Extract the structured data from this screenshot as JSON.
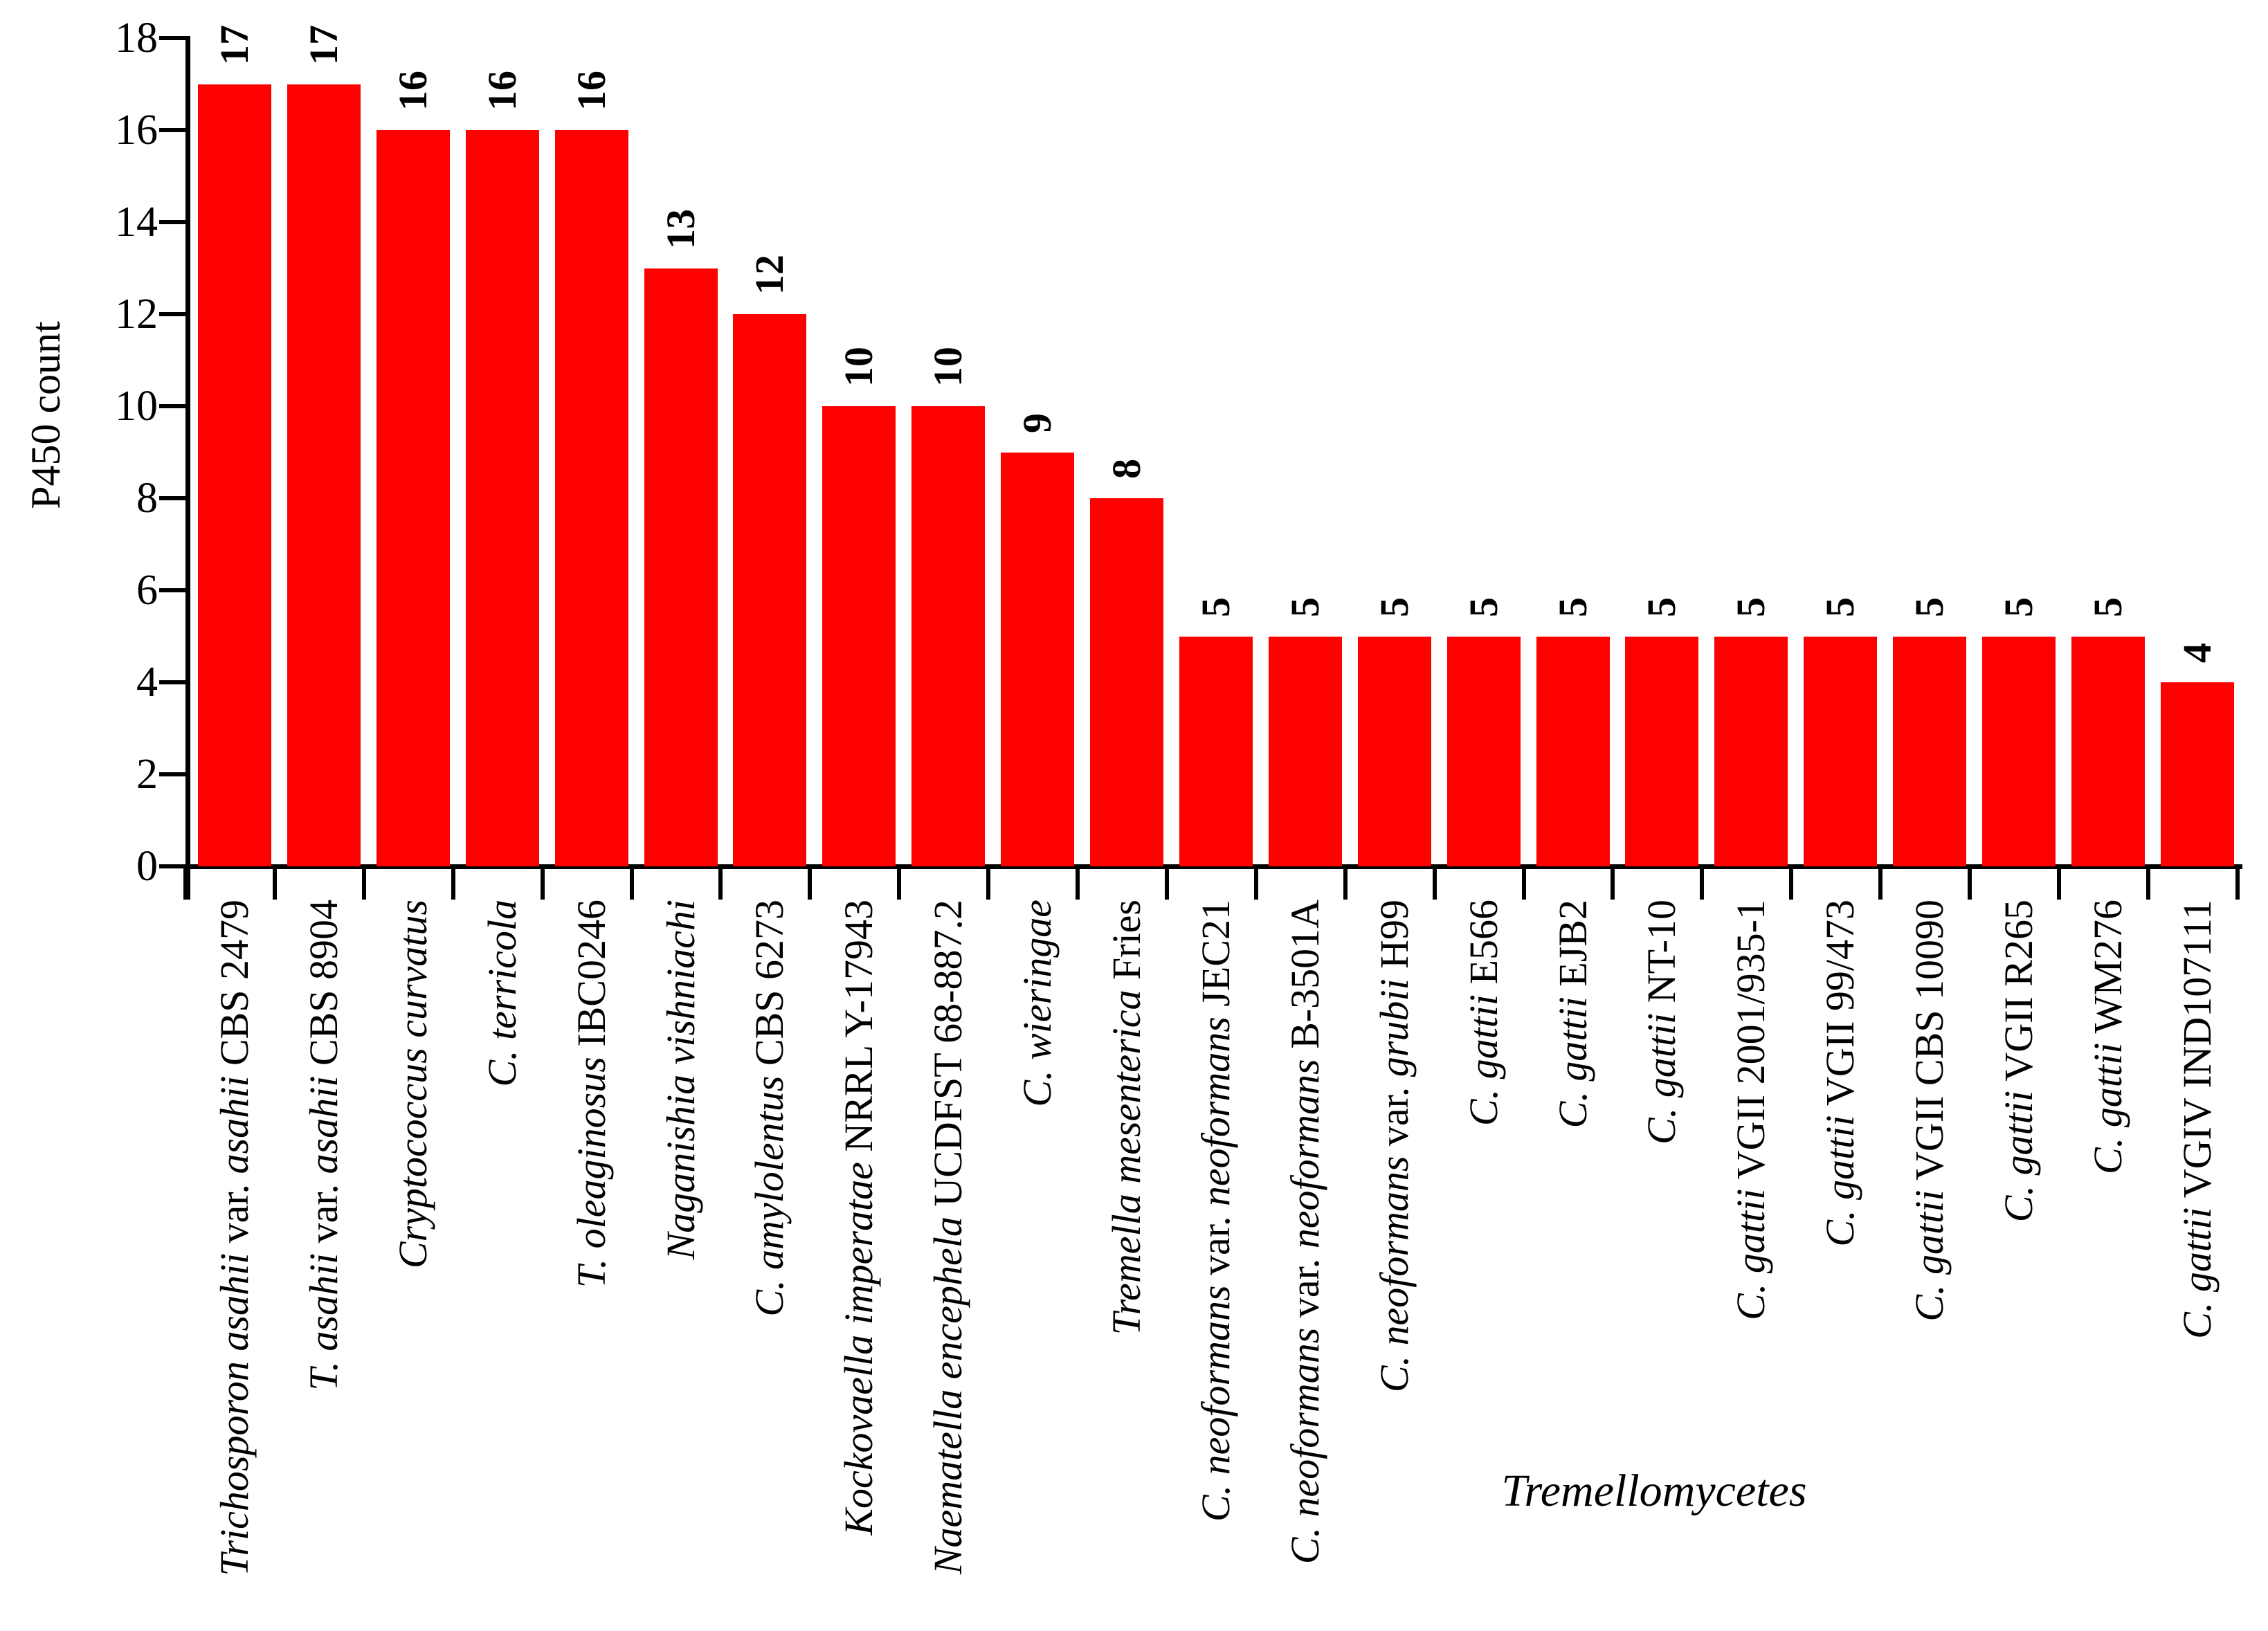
{
  "figure": {
    "background_color": "#ffffff",
    "axis_color": "#000000",
    "text_color": "#000000"
  },
  "chart_data": {
    "type": "bar",
    "title": "",
    "ylabel": "P450 count",
    "xlabel": "Tremellomycetes",
    "ylim": [
      0,
      18
    ],
    "yticks": [
      0,
      2,
      4,
      6,
      8,
      10,
      12,
      14,
      16,
      18
    ],
    "grid": false,
    "legend": "none",
    "bar_color": "#fe0000",
    "value_labels_shown": true,
    "categories": [
      "Trichosporon asahii var. asahii CBS 2479",
      "T. asahii var. asahii CBS 8904",
      "Cryptococcus curvatus",
      "C. terricola",
      "T. oleaginosus IBC0246",
      "Naganishia vishniachi",
      "C. amylolentus CBS 6273",
      "Kockovaella imperatae NRRL Y-17943",
      "Naematella encephela UCDFST 68-887.2",
      "C. wieringae",
      "Tremella mesenterica Fries",
      "C. neoformans var. neoformans JEC21",
      "C. neoformans var. neoformans B-3501A",
      "C. neoformans var. grubii H99",
      "C. gattii E566",
      "C. gattii EJB2",
      "C. gattii NT-10",
      "C. gattii VGII 2001/935-1",
      "C. gattii VGII 99/473",
      "C. gattii VGII CBS 10090",
      "C. gattii VGII R265",
      "C. gattii WM276",
      "C. gattii VGIV IND107111"
    ],
    "categories_rich": [
      [
        {
          "t": "Trichosporon asahii",
          "i": true
        },
        {
          "t": "var.",
          "i": false
        },
        {
          "t": "asahii",
          "i": true
        },
        {
          "t": "CBS 2479",
          "i": false
        }
      ],
      [
        {
          "t": "T. asahii",
          "i": true
        },
        {
          "t": "var.",
          "i": false
        },
        {
          "t": "asahii",
          "i": true
        },
        {
          "t": "CBS 8904",
          "i": false
        }
      ],
      [
        {
          "t": "Cryptococcus curvatus",
          "i": true
        }
      ],
      [
        {
          "t": "C. terricola",
          "i": true
        }
      ],
      [
        {
          "t": "T. oleaginosus",
          "i": true
        },
        {
          "t": "IBC0246",
          "i": false
        }
      ],
      [
        {
          "t": "Naganishia vishniachi",
          "i": true
        }
      ],
      [
        {
          "t": "C. amylolentus",
          "i": true
        },
        {
          "t": "CBS 6273",
          "i": false
        }
      ],
      [
        {
          "t": "Kockovaella imperatae",
          "i": true
        },
        {
          "t": "NRRL Y-17943",
          "i": false
        }
      ],
      [
        {
          "t": "Naematella encephela",
          "i": true
        },
        {
          "t": "UCDFST 68-887.2",
          "i": false
        }
      ],
      [
        {
          "t": "C. wieringae",
          "i": true
        }
      ],
      [
        {
          "t": "Tremella mesenterica",
          "i": true
        },
        {
          "t": "Fries",
          "i": false
        }
      ],
      [
        {
          "t": "C. neoformans",
          "i": true
        },
        {
          "t": "var.",
          "i": false
        },
        {
          "t": "neoformans",
          "i": true
        },
        {
          "t": "JEC21",
          "i": false
        }
      ],
      [
        {
          "t": "C. neoformans",
          "i": true
        },
        {
          "t": "var.",
          "i": false
        },
        {
          "t": "neoformans",
          "i": true
        },
        {
          "t": "B-3501A",
          "i": false
        }
      ],
      [
        {
          "t": "C. neoformans",
          "i": true
        },
        {
          "t": "var.",
          "i": false
        },
        {
          "t": "grubii",
          "i": true
        },
        {
          "t": "H99",
          "i": false
        }
      ],
      [
        {
          "t": "C. gattii",
          "i": true
        },
        {
          "t": "E566",
          "i": false
        }
      ],
      [
        {
          "t": "C. gattii",
          "i": true
        },
        {
          "t": "EJB2",
          "i": false
        }
      ],
      [
        {
          "t": "C. gattii",
          "i": true
        },
        {
          "t": "NT-10",
          "i": false
        }
      ],
      [
        {
          "t": "C. gattii",
          "i": true
        },
        {
          "t": "VGII 2001/935-1",
          "i": false
        }
      ],
      [
        {
          "t": "C. gattii",
          "i": true
        },
        {
          "t": "VGII 99/473",
          "i": false
        }
      ],
      [
        {
          "t": "C. gattii",
          "i": true
        },
        {
          "t": "VGII CBS 10090",
          "i": false
        }
      ],
      [
        {
          "t": "C. gattii",
          "i": true
        },
        {
          "t": "VGII R265",
          "i": false
        }
      ],
      [
        {
          "t": "C. gattii",
          "i": true
        },
        {
          "t": "WM276",
          "i": false
        }
      ],
      [
        {
          "t": "C. gattii",
          "i": true
        },
        {
          "t": "VGIV IND107111",
          "i": false
        }
      ]
    ],
    "values": [
      17,
      17,
      16,
      16,
      16,
      13,
      12,
      10,
      10,
      9,
      8,
      5,
      5,
      5,
      5,
      5,
      5,
      5,
      5,
      5,
      5,
      5,
      4
    ]
  }
}
